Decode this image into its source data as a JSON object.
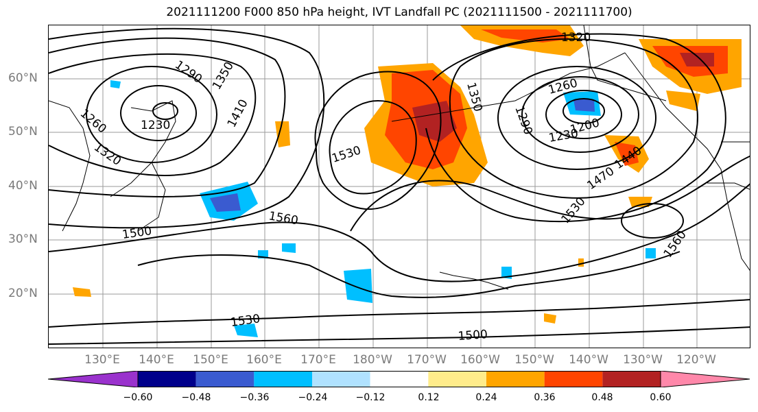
{
  "title": "2021111200 F000 850 hPa height, IVT Landfall PC (2021111500 - 2021111700)",
  "lat_labels": [
    "60°N",
    "50°N",
    "40°N",
    "30°N",
    "20°N"
  ],
  "lon_labels": [
    "130°E",
    "140°E",
    "150°E",
    "160°E",
    "170°E",
    "180°W",
    "170°W",
    "160°W",
    "150°W",
    "140°W",
    "130°W",
    "120°W"
  ],
  "colorbar": {
    "ticks": [
      "−0.60",
      "−0.48",
      "−0.36",
      "−0.24",
      "−0.12",
      "0.12",
      "0.24",
      "0.36",
      "0.48",
      "0.60"
    ],
    "colors": [
      "#9a32cd",
      "#00008b",
      "#3a5bd0",
      "#00bfff",
      "#b0e2ff",
      "#ffffff",
      "#ffec8b",
      "#ffa500",
      "#ff4500",
      "#b22222",
      "#ff88aa"
    ]
  },
  "contour_labels": [
    "1290",
    "1350",
    "1230",
    "1260",
    "1320",
    "1410",
    "1530",
    "1350",
    "1320",
    "1260",
    "1290",
    "1230",
    "1200",
    "1440",
    "1470",
    "1530",
    "1560",
    "1560",
    "1500",
    "1530",
    "1500"
  ]
}
